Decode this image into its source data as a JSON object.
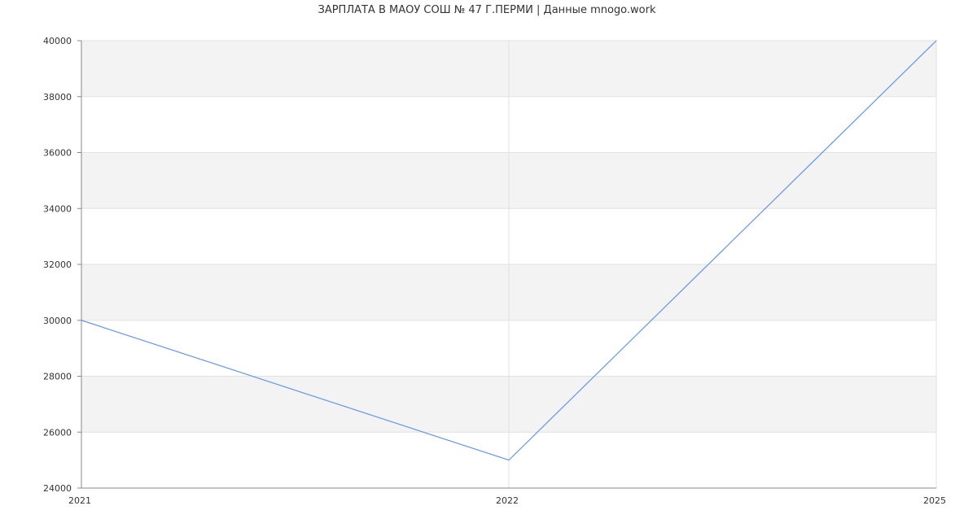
{
  "chart_data": {
    "type": "line",
    "title": "ЗАРПЛАТА В МАОУ СОШ № 47 Г.ПЕРМИ | Данные mnogo.work",
    "categories": [
      "2021",
      "2022",
      "2025"
    ],
    "values": [
      30000,
      25000,
      40000
    ],
    "ylim": [
      24000,
      40000
    ],
    "yticks": [
      24000,
      26000,
      28000,
      30000,
      32000,
      34000,
      36000,
      38000,
      40000
    ],
    "grid": true,
    "line_color": "#6495ED",
    "band_color": "#F3F3F3"
  }
}
